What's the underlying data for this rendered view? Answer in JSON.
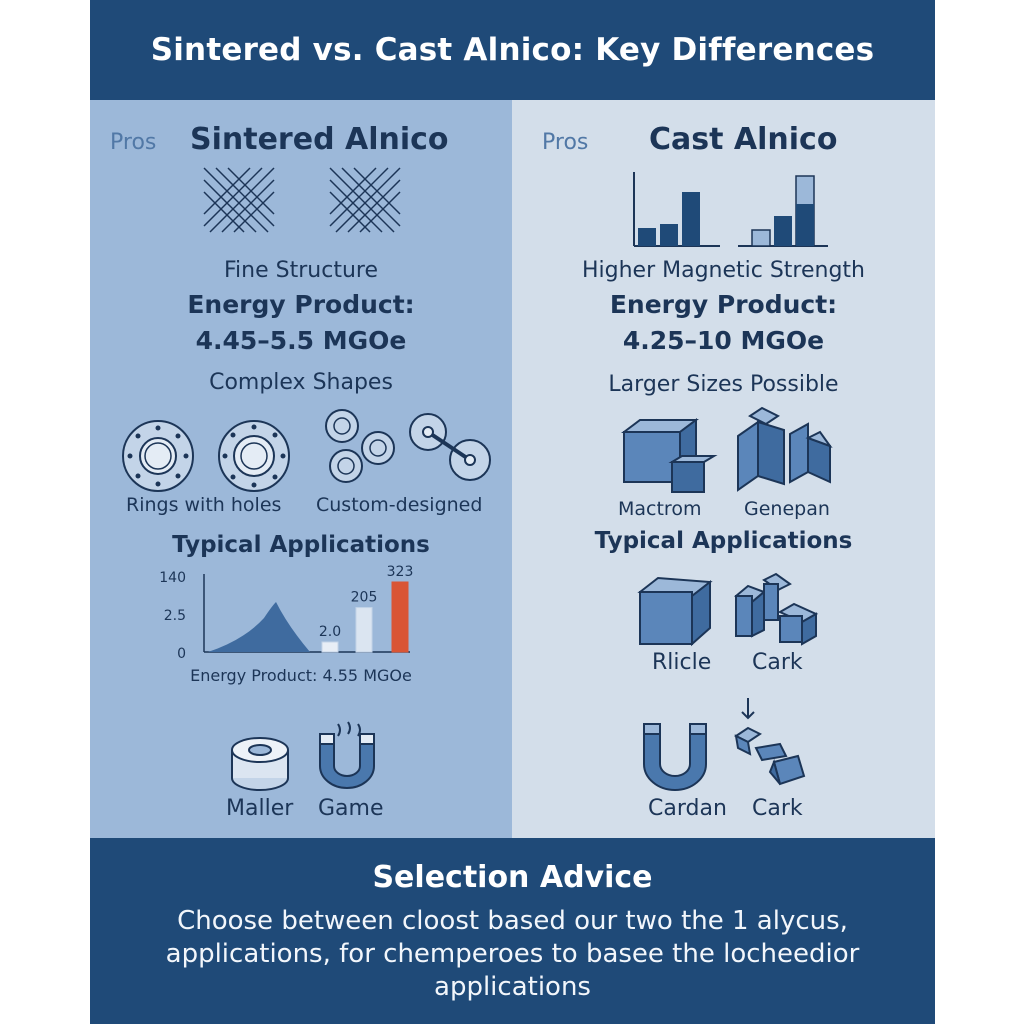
{
  "title": "Sintered vs. Cast Alnico: Key Differences",
  "colors": {
    "navy": "#1f4a78",
    "left_bg": "#9cb8d9",
    "right_bg": "#d3deea",
    "accent": "#d95535"
  },
  "left": {
    "pros": "Pros",
    "title": "Sintered Alnico",
    "structure_label": "Fine Structure",
    "energy_heading": "Energy Product:",
    "energy_value": "4.45–5.5 MGOe",
    "shapes_heading": "Complex Shapes",
    "shape_labels": [
      "Rings with holes",
      "Custom-designed"
    ],
    "applications_heading": "Typical Applications",
    "chart_caption": "Energy Product: 4.55 MGOe",
    "app_labels": [
      "Maller",
      "Game"
    ]
  },
  "right": {
    "pros": "Pros",
    "title": "Cast Alnico",
    "strength_label": "Higher Magnetic Strength",
    "energy_heading": "Energy Product:",
    "energy_value": "4.25–10 MGOe",
    "sizes_heading": "Larger Sizes Possible",
    "size_labels": [
      "Mactrom",
      "Genepan"
    ],
    "applications_heading": "Typical Applications",
    "app_labels": [
      "Rlicle",
      "Cark",
      "Cardan",
      "Cark"
    ]
  },
  "footer": {
    "title": "Selection Advice",
    "body": "Choose between cloost based our two the 1 alycus, applications, for chemperoes to basee the locheedior applications"
  },
  "chart_data": {
    "type": "bar",
    "title": "",
    "xlabel": "Energy Product: 4.55 MGOe",
    "ylabel": "",
    "y_ticks": [
      "140",
      "2.5",
      "0"
    ],
    "data_labels": [
      "2.0",
      "205",
      "323"
    ],
    "values": [
      2.0,
      205,
      323
    ],
    "area_peak_label": "",
    "highlight_color": "#d95535"
  }
}
